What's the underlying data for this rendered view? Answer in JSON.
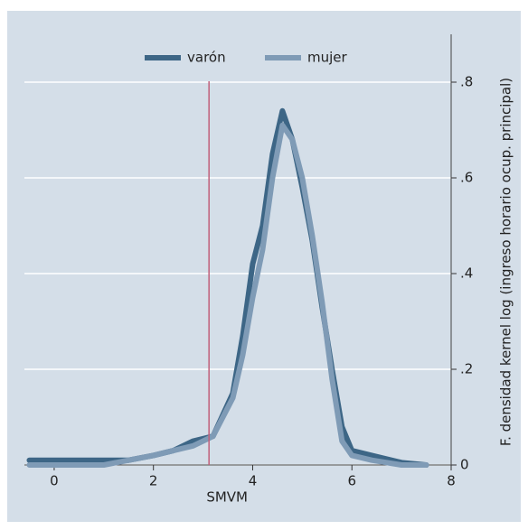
{
  "chart_data": {
    "type": "line",
    "y_label": "F. densidad  kernel log (ingreso horario ocup. principal)",
    "x": [
      -0.5,
      0,
      0.5,
      1,
      1.5,
      2,
      2.4,
      2.8,
      3.2,
      3.6,
      3.8,
      4,
      4.2,
      4.4,
      4.6,
      4.8,
      5,
      5.2,
      5.4,
      5.6,
      5.8,
      6,
      6.4,
      7,
      7.5
    ],
    "series": [
      {
        "name": "varón",
        "color": "#3d6686",
        "values": [
          0.01,
          0.01,
          0.01,
          0.01,
          0.01,
          0.02,
          0.03,
          0.05,
          0.06,
          0.15,
          0.27,
          0.42,
          0.5,
          0.65,
          0.74,
          0.68,
          0.58,
          0.47,
          0.33,
          0.2,
          0.08,
          0.03,
          0.02,
          0.005,
          0
        ]
      },
      {
        "name": "mujer",
        "color": "#7f9bb6",
        "values": [
          0,
          0,
          0,
          0,
          0.01,
          0.02,
          0.03,
          0.04,
          0.06,
          0.14,
          0.23,
          0.35,
          0.45,
          0.6,
          0.71,
          0.68,
          0.6,
          0.48,
          0.34,
          0.18,
          0.05,
          0.02,
          0.01,
          0,
          0
        ]
      }
    ],
    "vline": {
      "value": 3.12,
      "label": "SMVM",
      "color": "#c0607a"
    },
    "xlim": [
      -0.6,
      8
    ],
    "xticks": [
      0,
      2,
      4,
      6,
      8
    ],
    "ylim": [
      0,
      0.9
    ],
    "yticks": [
      0,
      {
        "value": 0.2,
        "label": ".2"
      },
      {
        "value": 0.4,
        "label": ".4"
      },
      {
        "value": 0.6,
        "label": ".6"
      },
      {
        "value": 0.8,
        "label": ".8"
      }
    ],
    "grid": true
  }
}
